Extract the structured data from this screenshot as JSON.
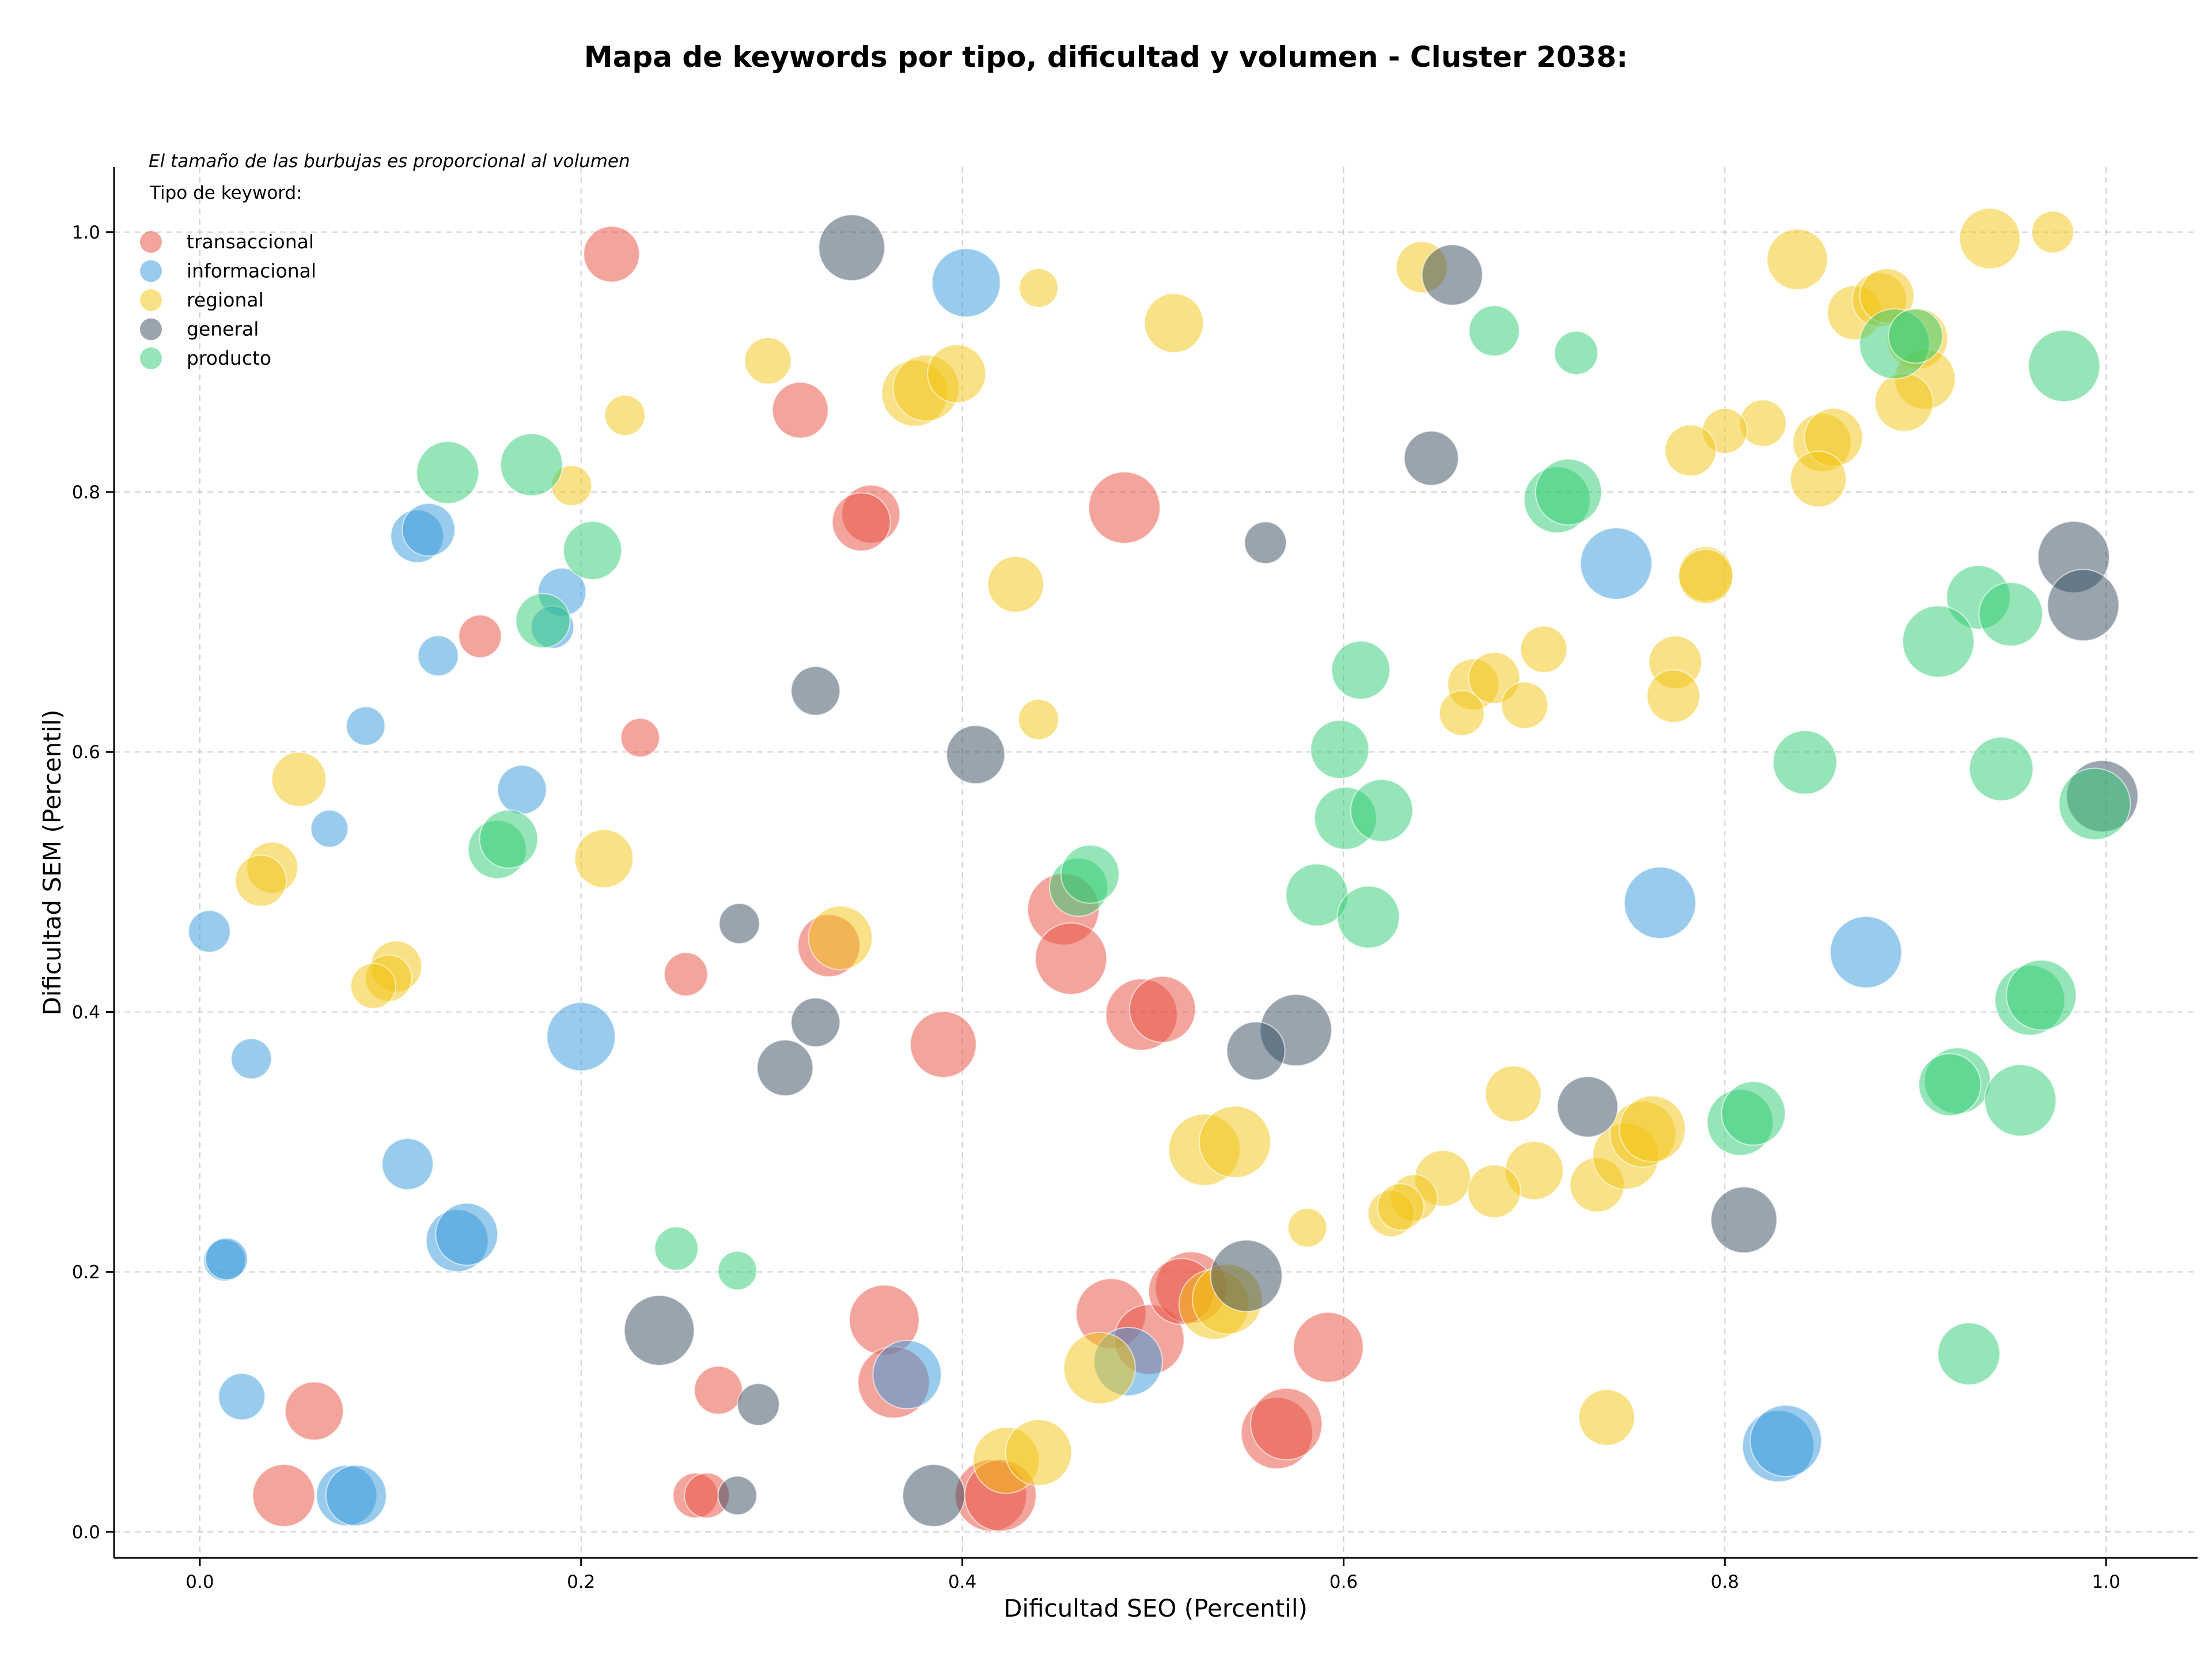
{
  "chart_data": {
    "type": "scatter",
    "title": "Mapa de keywords por tipo, dificultad y volumen - Cluster 2038:",
    "xlabel": "Dificultad SEO (Percentil)",
    "ylabel": "Dificultad SEM (Percentil)",
    "xlim": [
      -0.045,
      1.048
    ],
    "ylim": [
      -0.02,
      1.05
    ],
    "xticks": [
      0.0,
      0.2,
      0.4,
      0.6,
      0.8,
      1.0
    ],
    "xtick_labels": [
      "0.0",
      "0.2",
      "0.4",
      "0.6",
      "0.8",
      "1.0"
    ],
    "yticks": [
      0.0,
      0.2,
      0.4,
      0.6,
      0.8,
      1.0
    ],
    "ytick_labels": [
      "0.0",
      "0.2",
      "0.4",
      "0.6",
      "0.8",
      "1.0"
    ],
    "grid": true,
    "legend_position": "top-left",
    "legend_note": "El tamaño de las burbujas es proporcional al volumen",
    "legend_title": "Tipo de keyword:",
    "size_encoding": "volumen (relative bubble size, 0-1)",
    "series": [
      {
        "name": "transaccional",
        "color": "#e74c3c",
        "points": [
          [
            0.216,
            0.983,
            0.42
          ],
          [
            0.315,
            0.863,
            0.42
          ],
          [
            0.352,
            0.783,
            0.45
          ],
          [
            0.347,
            0.777,
            0.45
          ],
          [
            0.485,
            0.788,
            0.62
          ],
          [
            0.147,
            0.689,
            0.25
          ],
          [
            0.231,
            0.611,
            0.2
          ],
          [
            0.255,
            0.429,
            0.26
          ],
          [
            0.33,
            0.451,
            0.5
          ],
          [
            0.453,
            0.479,
            0.62
          ],
          [
            0.457,
            0.441,
            0.62
          ],
          [
            0.39,
            0.375,
            0.55
          ],
          [
            0.494,
            0.398,
            0.62
          ],
          [
            0.505,
            0.402,
            0.55
          ],
          [
            0.06,
            0.093,
            0.45
          ],
          [
            0.044,
            0.028,
            0.5
          ],
          [
            0.272,
            0.109,
            0.32
          ],
          [
            0.26,
            0.028,
            0.28
          ],
          [
            0.266,
            0.028,
            0.28
          ],
          [
            0.359,
            0.163,
            0.6
          ],
          [
            0.364,
            0.115,
            0.62
          ],
          [
            0.415,
            0.028,
            0.62
          ],
          [
            0.42,
            0.028,
            0.62
          ],
          [
            0.478,
            0.168,
            0.6
          ],
          [
            0.498,
            0.148,
            0.6
          ],
          [
            0.52,
            0.188,
            0.62
          ],
          [
            0.515,
            0.185,
            0.55
          ],
          [
            0.565,
            0.076,
            0.62
          ],
          [
            0.57,
            0.083,
            0.62
          ],
          [
            0.592,
            0.142,
            0.6
          ]
        ]
      },
      {
        "name": "informacional",
        "color": "#3498db",
        "points": [
          [
            0.402,
            0.961,
            0.58
          ],
          [
            0.114,
            0.766,
            0.38
          ],
          [
            0.12,
            0.771,
            0.38
          ],
          [
            0.19,
            0.723,
            0.32
          ],
          [
            0.185,
            0.696,
            0.25
          ],
          [
            0.125,
            0.674,
            0.22
          ],
          [
            0.087,
            0.62,
            0.2
          ],
          [
            0.068,
            0.541,
            0.18
          ],
          [
            0.169,
            0.571,
            0.33
          ],
          [
            0.005,
            0.462,
            0.24
          ],
          [
            0.027,
            0.364,
            0.22
          ],
          [
            0.2,
            0.381,
            0.58
          ],
          [
            0.109,
            0.283,
            0.36
          ],
          [
            0.135,
            0.224,
            0.5
          ],
          [
            0.14,
            0.229,
            0.5
          ],
          [
            0.013,
            0.209,
            0.24
          ],
          [
            0.014,
            0.21,
            0.24
          ],
          [
            0.022,
            0.104,
            0.3
          ],
          [
            0.077,
            0.028,
            0.48
          ],
          [
            0.082,
            0.028,
            0.48
          ],
          [
            0.371,
            0.121,
            0.58
          ],
          [
            0.487,
            0.131,
            0.58
          ],
          [
            0.743,
            0.745,
            0.62
          ],
          [
            0.766,
            0.484,
            0.62
          ],
          [
            0.874,
            0.446,
            0.62
          ],
          [
            0.828,
            0.066,
            0.62
          ],
          [
            0.832,
            0.07,
            0.62
          ]
        ]
      },
      {
        "name": "regional",
        "color": "#f1c40f",
        "points": [
          [
            0.44,
            0.957,
            0.2
          ],
          [
            0.298,
            0.901,
            0.3
          ],
          [
            0.223,
            0.859,
            0.22
          ],
          [
            0.375,
            0.876,
            0.55
          ],
          [
            0.381,
            0.88,
            0.55
          ],
          [
            0.397,
            0.891,
            0.45
          ],
          [
            0.511,
            0.93,
            0.46
          ],
          [
            0.195,
            0.805,
            0.22
          ],
          [
            0.428,
            0.729,
            0.42
          ],
          [
            0.44,
            0.625,
            0.22
          ],
          [
            0.052,
            0.579,
            0.4
          ],
          [
            0.038,
            0.511,
            0.36
          ],
          [
            0.032,
            0.501,
            0.36
          ],
          [
            0.212,
            0.518,
            0.45
          ],
          [
            0.103,
            0.435,
            0.36
          ],
          [
            0.099,
            0.426,
            0.3
          ],
          [
            0.091,
            0.42,
            0.28
          ],
          [
            0.336,
            0.457,
            0.52
          ],
          [
            0.527,
            0.294,
            0.62
          ],
          [
            0.543,
            0.3,
            0.62
          ],
          [
            0.472,
            0.126,
            0.62
          ],
          [
            0.423,
            0.055,
            0.55
          ],
          [
            0.44,
            0.061,
            0.55
          ],
          [
            0.532,
            0.175,
            0.6
          ],
          [
            0.539,
            0.179,
            0.6
          ],
          [
            0.581,
            0.234,
            0.2
          ],
          [
            0.641,
            0.973,
            0.36
          ],
          [
            0.838,
            0.979,
            0.48
          ],
          [
            0.868,
            0.938,
            0.4
          ],
          [
            0.881,
            0.948,
            0.4
          ],
          [
            0.885,
            0.951,
            0.4
          ],
          [
            0.939,
            0.995,
            0.48
          ],
          [
            0.972,
            1.0,
            0.24
          ],
          [
            0.901,
            0.918,
            0.48
          ],
          [
            0.905,
            0.887,
            0.48
          ],
          [
            0.894,
            0.869,
            0.45
          ],
          [
            0.851,
            0.838,
            0.45
          ],
          [
            0.857,
            0.842,
            0.45
          ],
          [
            0.849,
            0.81,
            0.42
          ],
          [
            0.82,
            0.853,
            0.3
          ],
          [
            0.8,
            0.847,
            0.28
          ],
          [
            0.782,
            0.832,
            0.36
          ],
          [
            0.79,
            0.737,
            0.4
          ],
          [
            0.79,
            0.735,
            0.4
          ],
          [
            0.705,
            0.679,
            0.3
          ],
          [
            0.774,
            0.669,
            0.38
          ],
          [
            0.773,
            0.643,
            0.38
          ],
          [
            0.668,
            0.652,
            0.36
          ],
          [
            0.679,
            0.657,
            0.36
          ],
          [
            0.662,
            0.63,
            0.28
          ],
          [
            0.695,
            0.636,
            0.3
          ],
          [
            0.689,
            0.337,
            0.42
          ],
          [
            0.7,
            0.278,
            0.45
          ],
          [
            0.652,
            0.272,
            0.42
          ],
          [
            0.679,
            0.262,
            0.38
          ],
          [
            0.637,
            0.257,
            0.3
          ],
          [
            0.625,
            0.245,
            0.3
          ],
          [
            0.63,
            0.25,
            0.3
          ],
          [
            0.733,
            0.267,
            0.4
          ],
          [
            0.748,
            0.289,
            0.55
          ],
          [
            0.757,
            0.306,
            0.55
          ],
          [
            0.762,
            0.31,
            0.55
          ],
          [
            0.738,
            0.088,
            0.42
          ]
        ]
      },
      {
        "name": "general",
        "color": "#34495e",
        "points": [
          [
            0.342,
            0.988,
            0.55
          ],
          [
            0.657,
            0.967,
            0.48
          ],
          [
            0.646,
            0.826,
            0.4
          ],
          [
            0.559,
            0.761,
            0.24
          ],
          [
            0.323,
            0.647,
            0.33
          ],
          [
            0.407,
            0.598,
            0.45
          ],
          [
            0.283,
            0.468,
            0.22
          ],
          [
            0.323,
            0.392,
            0.33
          ],
          [
            0.307,
            0.357,
            0.42
          ],
          [
            0.575,
            0.386,
            0.62
          ],
          [
            0.554,
            0.37,
            0.45
          ],
          [
            0.728,
            0.327,
            0.48
          ],
          [
            0.81,
            0.24,
            0.55
          ],
          [
            0.549,
            0.197,
            0.62
          ],
          [
            0.241,
            0.155,
            0.6
          ],
          [
            0.293,
            0.098,
            0.24
          ],
          [
            0.282,
            0.028,
            0.2
          ],
          [
            0.385,
            0.028,
            0.5
          ],
          [
            0.983,
            0.75,
            0.62
          ],
          [
            0.988,
            0.713,
            0.62
          ],
          [
            0.998,
            0.566,
            0.62
          ]
        ]
      },
      {
        "name": "producto",
        "color": "#2ecc71",
        "points": [
          [
            0.13,
            0.815,
            0.5
          ],
          [
            0.174,
            0.821,
            0.5
          ],
          [
            0.206,
            0.755,
            0.45
          ],
          [
            0.18,
            0.701,
            0.4
          ],
          [
            0.156,
            0.525,
            0.45
          ],
          [
            0.162,
            0.533,
            0.45
          ],
          [
            0.25,
            0.218,
            0.26
          ],
          [
            0.282,
            0.201,
            0.2
          ],
          [
            0.461,
            0.496,
            0.45
          ],
          [
            0.467,
            0.506,
            0.45
          ],
          [
            0.679,
            0.924,
            0.35
          ],
          [
            0.722,
            0.907,
            0.26
          ],
          [
            0.712,
            0.794,
            0.55
          ],
          [
            0.718,
            0.8,
            0.55
          ],
          [
            0.609,
            0.663,
            0.45
          ],
          [
            0.598,
            0.602,
            0.45
          ],
          [
            0.601,
            0.549,
            0.5
          ],
          [
            0.62,
            0.555,
            0.5
          ],
          [
            0.586,
            0.49,
            0.5
          ],
          [
            0.613,
            0.473,
            0.5
          ],
          [
            0.889,
            0.914,
            0.6
          ],
          [
            0.9,
            0.92,
            0.4
          ],
          [
            0.978,
            0.897,
            0.62
          ],
          [
            0.933,
            0.719,
            0.52
          ],
          [
            0.95,
            0.706,
            0.52
          ],
          [
            0.912,
            0.685,
            0.62
          ],
          [
            0.842,
            0.592,
            0.52
          ],
          [
            0.945,
            0.587,
            0.52
          ],
          [
            0.994,
            0.56,
            0.62
          ],
          [
            0.96,
            0.409,
            0.6
          ],
          [
            0.966,
            0.413,
            0.6
          ],
          [
            0.922,
            0.347,
            0.55
          ],
          [
            0.918,
            0.344,
            0.5
          ],
          [
            0.955,
            0.332,
            0.62
          ],
          [
            0.808,
            0.315,
            0.55
          ],
          [
            0.815,
            0.322,
            0.52
          ],
          [
            0.928,
            0.137,
            0.5
          ]
        ]
      }
    ]
  }
}
